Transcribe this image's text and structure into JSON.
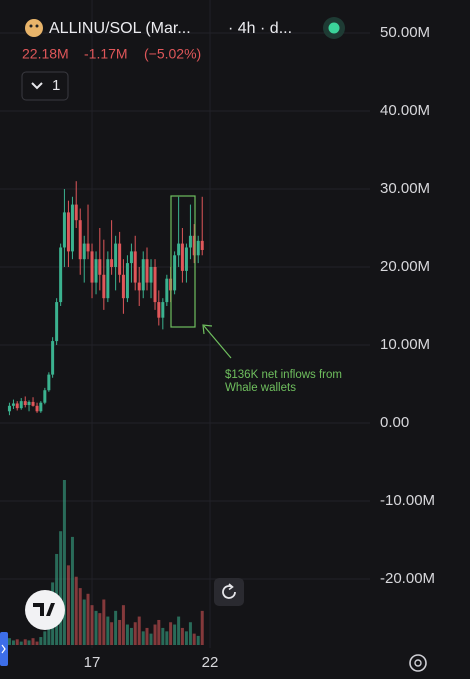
{
  "chart_data": {
    "type": "candlestick",
    "title": "ALLINU/SOL (Mar...",
    "interval": "· 4h · d...",
    "last": "22.18M",
    "change": "-1.17M",
    "change_pct": "(−5.02%)",
    "button": "1",
    "annotation": [
      "$136K net inflows from",
      "Whale wallets"
    ],
    "up_color": "#3bb28f",
    "down_color": "#e0575a",
    "grid": true,
    "x": [
      13.5,
      13.67,
      13.83,
      14,
      14.17,
      14.33,
      14.5,
      14.67,
      14.83,
      15,
      15.17,
      15.33,
      15.5,
      15.67,
      15.83,
      16,
      16.17,
      16.33,
      16.5,
      16.67,
      16.83,
      17,
      17.17,
      17.33,
      17.5,
      17.67,
      17.83,
      18,
      18.17,
      18.33,
      18.5,
      18.67,
      18.83,
      19,
      19.17,
      19.33,
      19.5,
      19.67,
      19.83,
      20,
      20.17,
      20.33,
      20.5,
      20.67,
      20.83,
      21,
      21.17,
      21.33,
      21.5,
      21.67
    ],
    "open": [
      1.5,
      2.2,
      2.5,
      1.9,
      2.8,
      2.3,
      2.7,
      2.2,
      1.5,
      2.6,
      4.2,
      6.2,
      10.5,
      15.5,
      22.5,
      27,
      22,
      28,
      26,
      21,
      23,
      22,
      18,
      21,
      19,
      16,
      21,
      20,
      23,
      19,
      16,
      20.5,
      22,
      18,
      17,
      21,
      18,
      20,
      15.5,
      13.5,
      15.5,
      18.5,
      17,
      21.5,
      23,
      19.5,
      22.5,
      24,
      21.5,
      23.35
    ],
    "high": [
      2.6,
      3.0,
      2.8,
      3.2,
      3.4,
      2.9,
      3.3,
      2.6,
      2.8,
      4.5,
      6.5,
      11,
      16,
      23,
      30,
      28.5,
      29,
      31,
      27.5,
      24,
      28,
      23,
      22,
      25,
      23.5,
      22,
      26,
      24,
      24.5,
      21,
      21.5,
      23,
      24,
      20,
      22,
      22.5,
      21,
      21,
      17,
      16,
      19,
      20,
      22,
      29,
      25,
      23,
      28,
      25.5,
      24,
      29
    ],
    "low": [
      1.0,
      1.8,
      1.6,
      1.7,
      2.0,
      1.5,
      2.1,
      1.3,
      1.3,
      2.4,
      4.0,
      5.8,
      10,
      15,
      20,
      20,
      21,
      25,
      19,
      18,
      21,
      16,
      16.5,
      17,
      14.5,
      15.5,
      19,
      17,
      18,
      14,
      15.5,
      18,
      17,
      15,
      16,
      17,
      16,
      14.5,
      12.5,
      12,
      15,
      15.5,
      16.5,
      20,
      18,
      18,
      21,
      20.5,
      20.5,
      21.5
    ],
    "close": [
      2.2,
      2.5,
      1.9,
      2.8,
      2.3,
      2.7,
      2.2,
      1.5,
      2.6,
      4.2,
      6.2,
      10.5,
      15.5,
      22.5,
      27,
      22,
      28,
      26,
      21,
      23,
      22,
      18,
      21,
      19,
      16,
      21,
      20,
      23,
      19,
      16,
      20.5,
      22,
      18,
      17,
      21,
      18,
      20,
      15.5,
      13.5,
      15.5,
      18.5,
      17,
      21.5,
      23,
      19.5,
      22.5,
      24,
      21.5,
      23.35,
      22.18
    ],
    "volume": [
      6,
      4,
      5,
      3,
      5,
      4,
      6,
      3,
      7,
      12,
      30,
      55,
      80,
      100,
      145,
      70,
      95,
      60,
      50,
      40,
      45,
      35,
      30,
      28,
      40,
      25,
      20,
      30,
      22,
      35,
      18,
      15,
      20,
      25,
      12,
      15,
      10,
      18,
      22,
      15,
      12,
      20,
      18,
      25,
      15,
      12,
      20,
      10,
      8,
      30
    ],
    "xlim": [
      13.1,
      28.78
    ],
    "xticks": [
      17,
      22
    ],
    "ylim": [
      -28.85,
      54.23
    ],
    "yticks": [
      {
        "value": 50,
        "label": "50.00M"
      },
      {
        "value": 40,
        "label": "40.00M"
      },
      {
        "value": 30,
        "label": "30.00M"
      },
      {
        "value": 20,
        "label": "20.00M"
      },
      {
        "value": 10,
        "label": "10.00M"
      },
      {
        "value": 0,
        "label": "0.00"
      },
      {
        "value": -10,
        "label": "-10.00M"
      },
      {
        "value": -20,
        "label": "-20.00M"
      }
    ]
  }
}
